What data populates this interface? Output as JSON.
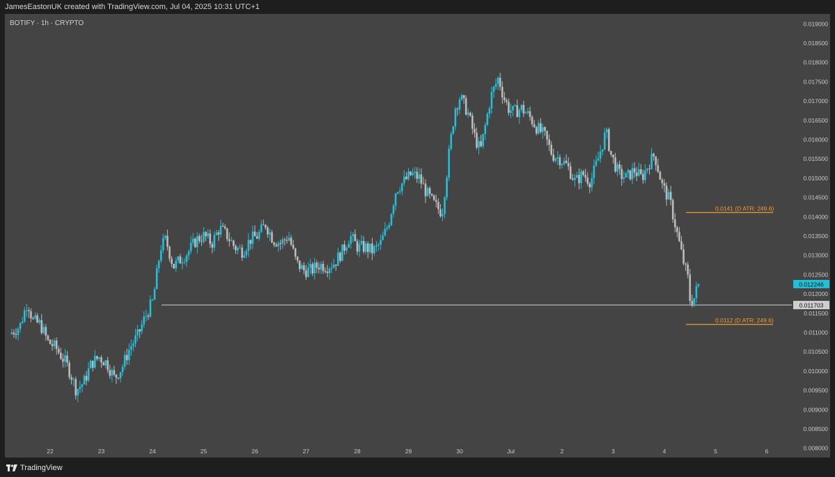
{
  "header": {
    "attribution": "JamesEastonUK created with TradingView.com, Jul 04, 2025 10:31 UTC+1"
  },
  "chart_panel": {
    "symbol_label": "BOTIFY · 1h · CRYPTO"
  },
  "footer": {
    "brand": "TradingView",
    "brand_icon": "tradingview-logo-icon"
  },
  "colors": {
    "background": "#1e1e1e",
    "panel": "#444444",
    "up_candle": "#23bfd8",
    "down_candle": "#bcbcbc",
    "level_line": "#f29d2e",
    "price_line": "#cfcfcf",
    "axis_text": "#c8c8c8"
  },
  "chart_data": {
    "type": "candlestick",
    "title": "BOTIFY · 1h · CRYPTO",
    "ylim": [
      0.00775,
      0.01925
    ],
    "y_ticks": [
      "0.019000",
      "0.018500",
      "0.018000",
      "0.017500",
      "0.017000",
      "0.016500",
      "0.016000",
      "0.015500",
      "0.015000",
      "0.014500",
      "0.014000",
      "0.013500",
      "0.013000",
      "0.012500",
      "0.012000",
      "0.011500",
      "0.011000",
      "0.010500",
      "0.010000",
      "0.009500",
      "0.009000",
      "0.008500",
      "0.008000"
    ],
    "x_ticks": [
      "22",
      "23",
      "24",
      "25",
      "26",
      "27",
      "28",
      "29",
      "30",
      "Jul",
      "2",
      "3",
      "4",
      "5",
      "6"
    ],
    "x_range_days": [
      21.25,
      6.9
    ],
    "current_price": {
      "label": "0.012246",
      "value": 0.012246
    },
    "horizontal_line": {
      "label": "0.011703",
      "value": 0.011703
    },
    "levels": [
      {
        "label": "0.0141 (D ATR: 249.6)",
        "value": 0.0141
      },
      {
        "label": "0.0112 (D ATR: 249.6)",
        "value": 0.0112
      }
    ],
    "price_path": [
      [
        21.25,
        0.01095
      ],
      [
        21.45,
        0.01115
      ],
      [
        21.6,
        0.0118
      ],
      [
        21.7,
        0.0113
      ],
      [
        21.85,
        0.0112
      ],
      [
        22.0,
        0.01075
      ],
      [
        22.15,
        0.0106
      ],
      [
        22.35,
        0.0102
      ],
      [
        22.45,
        0.0099
      ],
      [
        22.55,
        0.0095
      ],
      [
        22.7,
        0.0097
      ],
      [
        22.85,
        0.0102
      ],
      [
        23.0,
        0.01035
      ],
      [
        23.15,
        0.0102
      ],
      [
        23.3,
        0.0098
      ],
      [
        23.45,
        0.0101
      ],
      [
        23.6,
        0.0106
      ],
      [
        23.75,
        0.0109
      ],
      [
        23.9,
        0.0114
      ],
      [
        24.05,
        0.0118
      ],
      [
        24.12,
        0.01245
      ],
      [
        24.2,
        0.0132
      ],
      [
        24.3,
        0.0134
      ],
      [
        24.45,
        0.0127
      ],
      [
        24.6,
        0.0129
      ],
      [
        24.75,
        0.0131
      ],
      [
        24.9,
        0.0134
      ],
      [
        25.05,
        0.0135
      ],
      [
        25.2,
        0.0133
      ],
      [
        25.35,
        0.0137
      ],
      [
        25.5,
        0.0135
      ],
      [
        25.65,
        0.0132
      ],
      [
        25.8,
        0.0131
      ],
      [
        25.95,
        0.0134
      ],
      [
        26.1,
        0.0135
      ],
      [
        26.25,
        0.0138
      ],
      [
        26.4,
        0.0134
      ],
      [
        26.55,
        0.0133
      ],
      [
        26.7,
        0.0135
      ],
      [
        26.85,
        0.0128
      ],
      [
        27.0,
        0.0126
      ],
      [
        27.15,
        0.0126
      ],
      [
        27.3,
        0.01275
      ],
      [
        27.45,
        0.0127
      ],
      [
        27.6,
        0.0128
      ],
      [
        27.75,
        0.0131
      ],
      [
        27.9,
        0.0135
      ],
      [
        28.05,
        0.0132
      ],
      [
        28.2,
        0.0132
      ],
      [
        28.35,
        0.0131
      ],
      [
        28.5,
        0.0133
      ],
      [
        28.65,
        0.0138
      ],
      [
        28.8,
        0.0147
      ],
      [
        28.95,
        0.0149
      ],
      [
        29.1,
        0.0151
      ],
      [
        29.25,
        0.015
      ],
      [
        29.4,
        0.0146
      ],
      [
        29.55,
        0.0143
      ],
      [
        29.7,
        0.0141
      ],
      [
        29.85,
        0.0158
      ],
      [
        29.95,
        0.0168
      ],
      [
        30.05,
        0.0171
      ],
      [
        30.2,
        0.0167
      ],
      [
        30.35,
        0.016
      ],
      [
        30.45,
        0.0157
      ],
      [
        30.55,
        0.0164
      ],
      [
        30.65,
        0.0171
      ],
      [
        30.8,
        0.0176
      ],
      [
        30.9,
        0.0171
      ],
      [
        31.0,
        0.0168
      ],
      [
        31.1,
        0.0167
      ],
      [
        31.25,
        0.0168
      ],
      [
        31.4,
        0.0166
      ],
      [
        31.55,
        0.0163
      ],
      [
        31.7,
        0.0161
      ],
      [
        31.85,
        0.0156
      ],
      [
        32.0,
        0.0155
      ],
      [
        32.15,
        0.0153
      ],
      [
        32.3,
        0.0149
      ],
      [
        32.45,
        0.0151
      ],
      [
        32.6,
        0.0149
      ],
      [
        32.75,
        0.0155
      ],
      [
        32.9,
        0.0162
      ],
      [
        33.0,
        0.0156
      ],
      [
        33.15,
        0.0151
      ],
      [
        33.3,
        0.015
      ],
      [
        33.45,
        0.0152
      ],
      [
        33.6,
        0.015
      ],
      [
        33.75,
        0.0154
      ],
      [
        33.85,
        0.0156
      ],
      [
        34.0,
        0.0148
      ],
      [
        34.15,
        0.0144
      ],
      [
        34.3,
        0.0135
      ],
      [
        34.4,
        0.0129
      ],
      [
        34.5,
        0.0124
      ],
      [
        34.55,
        0.01175
      ],
      [
        34.63,
        0.0119
      ],
      [
        34.7,
        0.012246
      ]
    ]
  }
}
